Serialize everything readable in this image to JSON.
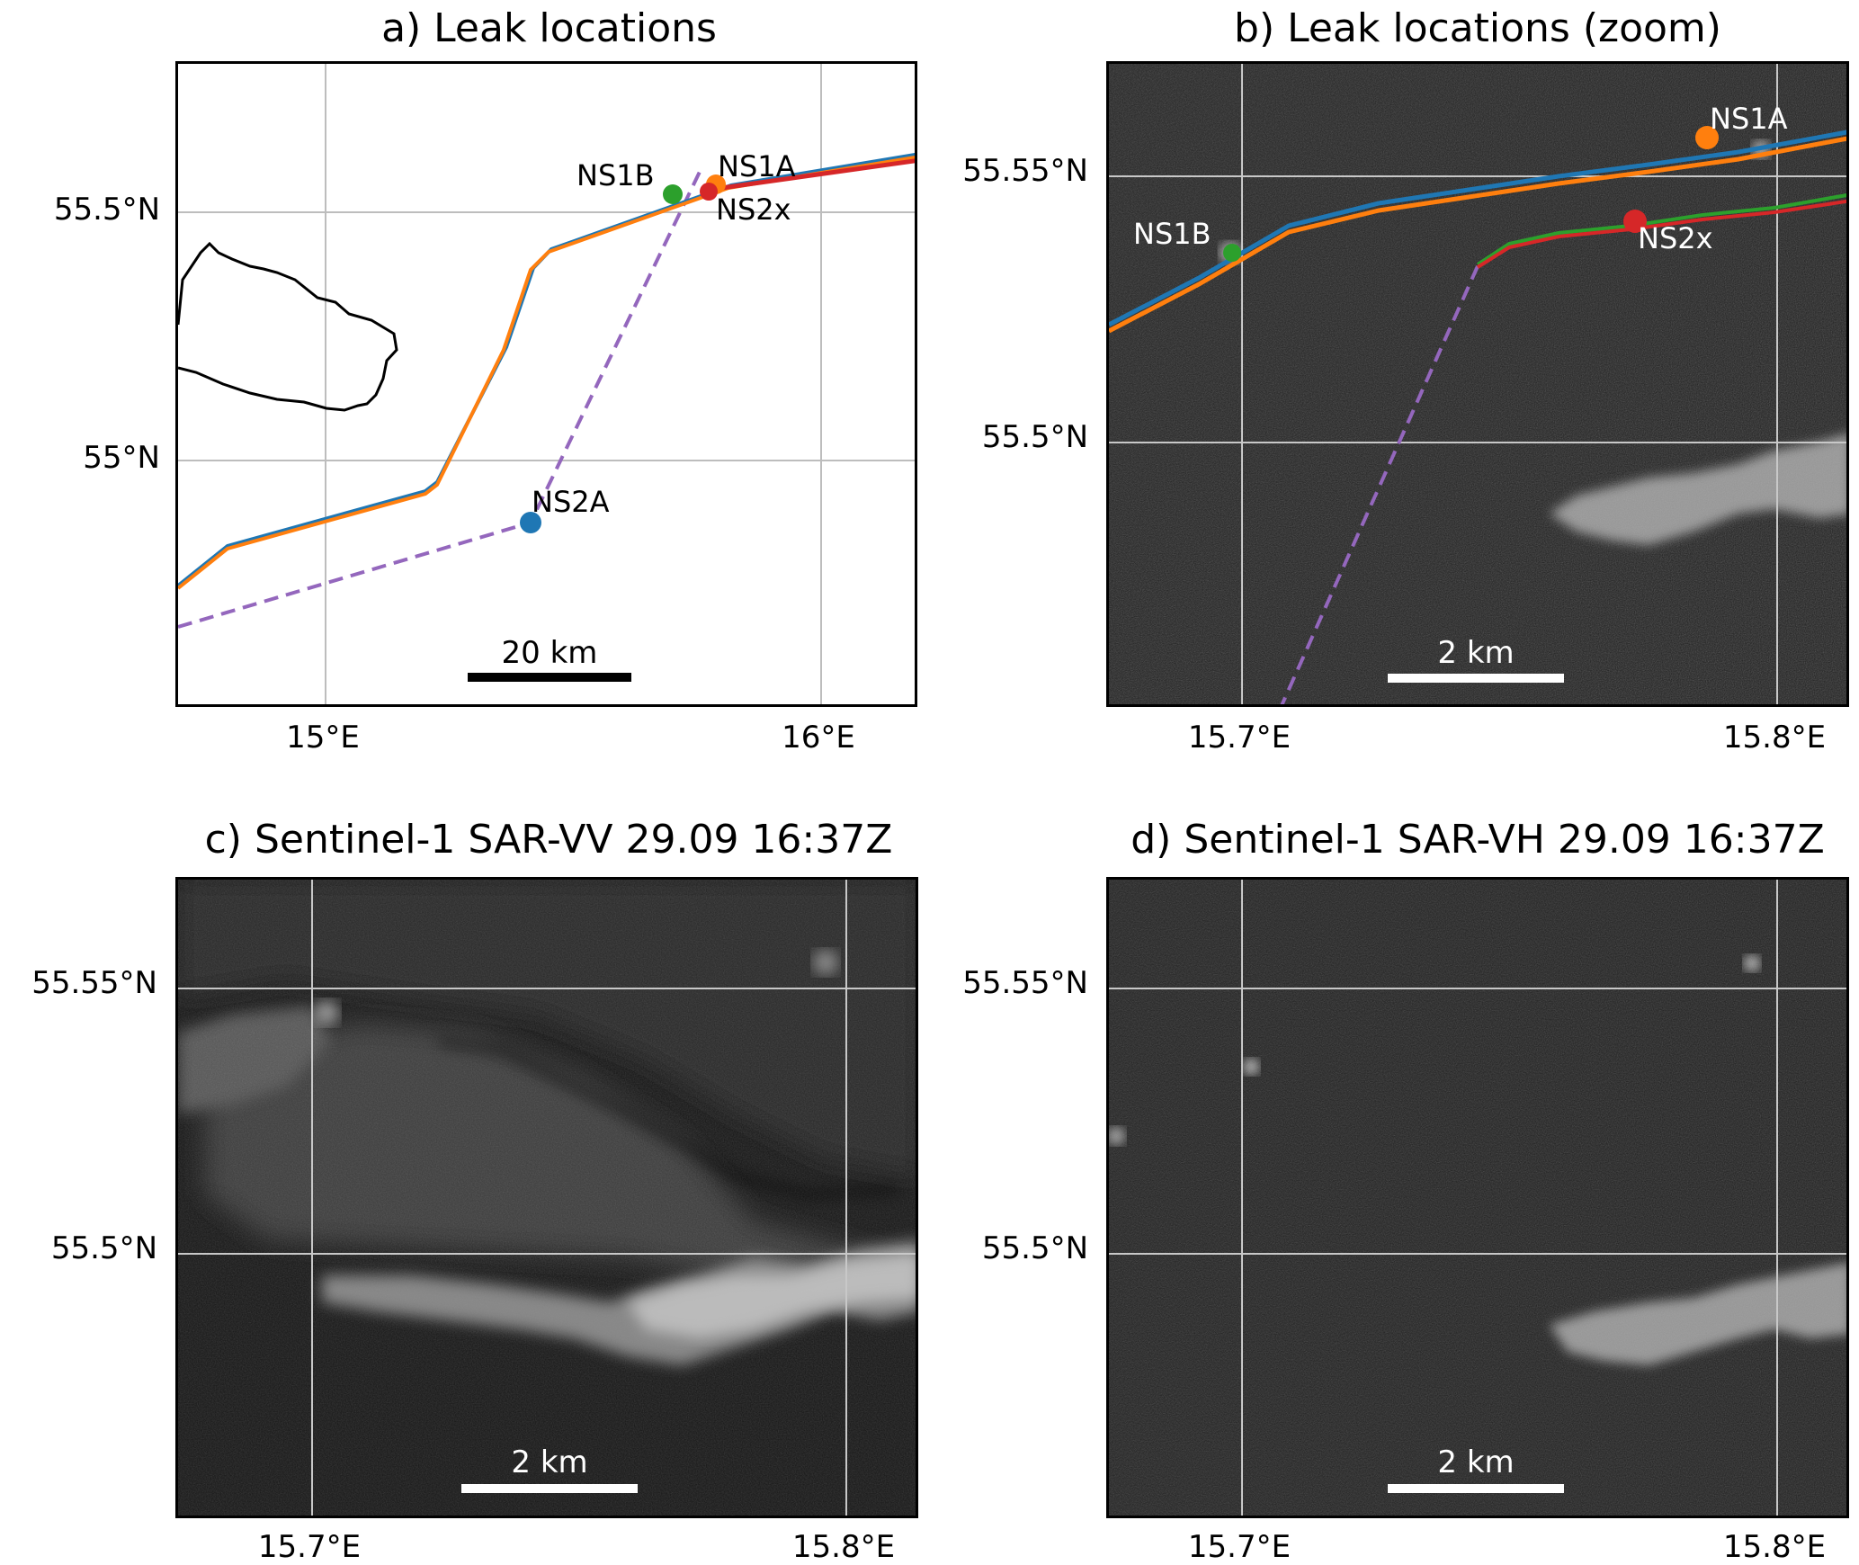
{
  "panels": {
    "a": {
      "title": "a) Leak locations",
      "y_ticks": [
        "55.5°N",
        "55°N"
      ],
      "x_ticks": [
        "15°E",
        "16°E"
      ],
      "scale_bar": "20 km",
      "labels": {
        "ns1b": "NS1B",
        "ns1a": "NS1A",
        "ns2x": "NS2x",
        "ns2a": "NS2A"
      }
    },
    "b": {
      "title": "b) Leak locations (zoom)",
      "y_ticks": [
        "55.55°N",
        "55.5°N"
      ],
      "x_ticks": [
        "15.7°E",
        "15.8°E"
      ],
      "scale_bar": "2 km",
      "labels": {
        "ns1b": "NS1B",
        "ns1a": "NS1A",
        "ns2x": "NS2x"
      }
    },
    "c": {
      "title": "c) Sentinel-1 SAR-VV 29.09 16:37Z",
      "y_ticks": [
        "55.55°N",
        "55.5°N"
      ],
      "x_ticks": [
        "15.7°E",
        "15.8°E"
      ],
      "scale_bar": "2 km"
    },
    "d": {
      "title": "d) Sentinel-1 SAR-VH 29.09 16:37Z",
      "y_ticks": [
        "55.55°N",
        "55.5°N"
      ],
      "x_ticks": [
        "15.7°E",
        "15.8°E"
      ],
      "scale_bar": "2 km"
    }
  },
  "colors": {
    "ns1_line_blue": "#1f77b4",
    "ns1_line_orange": "#ff7f0e",
    "ns2_line_red": "#d62728",
    "ns2_line_green": "#2ca02c",
    "ns2a_dashed": "#9467bd",
    "ns1a_point": "#ff7f0e",
    "ns1b_point": "#2ca02c",
    "ns2x_point": "#d62728",
    "ns2a_point": "#1f77b4",
    "gridline_map": "#bdbdbd",
    "gridline_sar": "#c8c8c8",
    "coastline": "#000000"
  }
}
